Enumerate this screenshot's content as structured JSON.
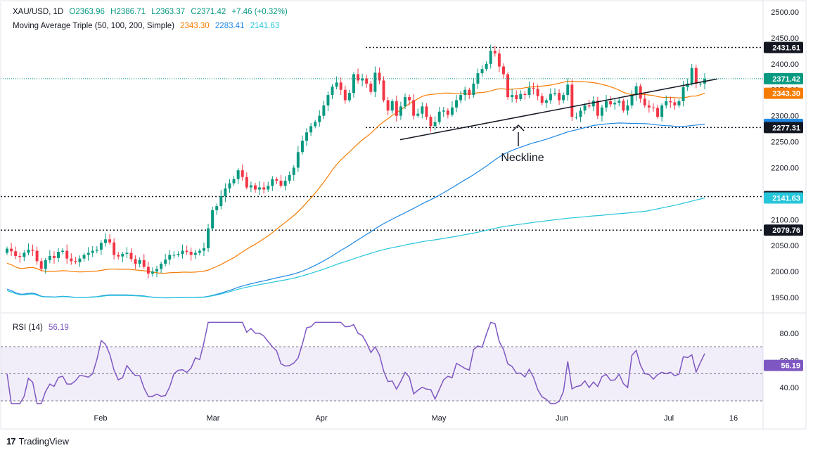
{
  "legend": {
    "symbol": "XAU/USD, 1D",
    "open": "O2363.96",
    "high": "H2386.71",
    "low": "L2363.37",
    "close": "C2371.42",
    "change": "+7.46 (+0.32%)",
    "ma_title": "Moving Average Triple (50, 100, 200, Simple)",
    "ma50": "2343.30",
    "ma100": "2283.41",
    "ma200": "2141.63",
    "rsi_title": "RSI (14)",
    "rsi_value": "56.19"
  },
  "colors": {
    "up": "#089981",
    "down": "#f23645",
    "ma50": "#f57c00",
    "ma100": "#1e88e5",
    "ma200": "#26c6da",
    "rsi": "#7e57c2",
    "trendline": "#131722"
  },
  "annotation": {
    "text": "Neckline"
  },
  "brand": {
    "name": "TradingView"
  },
  "chart_data": [
    {
      "type": "candlestick",
      "y_ticks": [
        "2500.00",
        "2450.00",
        "2400.00",
        "2350.00",
        "2300.00",
        "2250.00",
        "2200.00",
        "2150.00",
        "2100.00",
        "2050.00",
        "2000.00",
        "1950.00"
      ],
      "ylim": [
        1935,
        2505
      ],
      "x_labels": [
        "Feb",
        "Mar",
        "Apr",
        "May",
        "Jun",
        "Jul",
        "16"
      ],
      "price_labels": [
        {
          "text": "2431.61",
          "value": 2431.61,
          "color": "#131722"
        },
        {
          "text": "2371.42",
          "value": 2371.42,
          "color": "#089981"
        },
        {
          "text": "2343.30",
          "value": 2343.3,
          "color": "#f57c00"
        },
        {
          "text": "2283.41",
          "value": 2283.41,
          "color": "#1e88e5"
        },
        {
          "text": "2277.31",
          "value": 2277.31,
          "color": "#131722"
        },
        {
          "text": "2144.48",
          "value": 2144.48,
          "color": "#131722"
        },
        {
          "text": "2141.63",
          "value": 2141.63,
          "color": "#26c6da"
        },
        {
          "text": "2079.76",
          "value": 2079.76,
          "color": "#131722"
        }
      ],
      "horizontal_levels": [
        2431.61,
        2277.31,
        2144.48,
        2079.76
      ],
      "neckline": [
        [
          2254,
          2371
        ]
      ],
      "closes": [
        2044,
        2039,
        2030,
        2028,
        2036,
        2042,
        2040,
        2020,
        2005,
        2022,
        2030,
        2026,
        2038,
        2040,
        2025,
        2020,
        2018,
        2025,
        2032,
        2036,
        2040,
        2042,
        2055,
        2062,
        2056,
        2032,
        2029,
        2034,
        2036,
        2024,
        2015,
        2022,
        2009,
        1996,
        2000,
        2005,
        2015,
        2023,
        2032,
        2032,
        2034,
        2040,
        2038,
        2032,
        2036,
        2040,
        2045,
        2083,
        2118,
        2126,
        2145,
        2160,
        2170,
        2178,
        2195,
        2182,
        2162,
        2166,
        2158,
        2162,
        2158,
        2165,
        2178,
        2175,
        2165,
        2175,
        2186,
        2200,
        2230,
        2252,
        2268,
        2280,
        2288,
        2300,
        2320,
        2340,
        2356,
        2364,
        2350,
        2330,
        2344,
        2380,
        2368,
        2372,
        2362,
        2346,
        2383,
        2368,
        2330,
        2310,
        2328,
        2300,
        2318,
        2336,
        2330,
        2300,
        2304,
        2318,
        2298,
        2280,
        2288,
        2308,
        2310,
        2302,
        2316,
        2330,
        2340,
        2350,
        2340,
        2362,
        2382,
        2390,
        2400,
        2425,
        2420,
        2395,
        2380,
        2336,
        2340,
        2332,
        2342,
        2340,
        2354,
        2352,
        2338,
        2325,
        2330,
        2342,
        2344,
        2330,
        2340,
        2360,
        2298,
        2298,
        2310,
        2320,
        2318,
        2329,
        2300,
        2316,
        2328,
        2322,
        2325,
        2329,
        2310,
        2320,
        2340,
        2357,
        2333,
        2320,
        2316,
        2315,
        2298,
        2320,
        2328,
        2326,
        2320,
        2328,
        2355,
        2362,
        2392,
        2362,
        2362,
        2371
      ]
    },
    {
      "type": "line",
      "title": "RSI (14)",
      "y_ticks": [
        "80.00",
        "60.00",
        "40.00"
      ],
      "ylim": [
        25,
        95
      ],
      "bands": [
        70,
        50,
        30
      ],
      "current": 56.19
    }
  ]
}
